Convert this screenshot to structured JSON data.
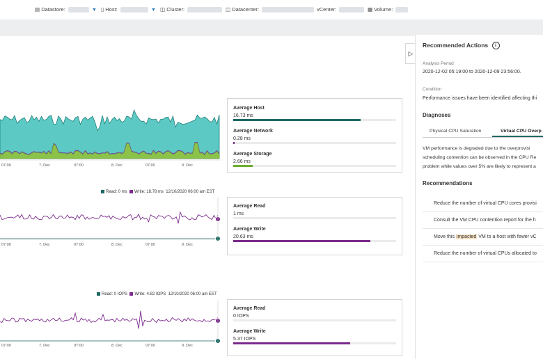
{
  "breadcrumb": {
    "datastore": "Datastore:",
    "host": "Host:",
    "cluster": "Cluster:",
    "datacenter": "Datacenter:",
    "vcenter": "vCenter:",
    "volume": "Volume:"
  },
  "latency_card": {
    "avg_host_label": "Average Host",
    "avg_host_value": "16.73 ms",
    "avg_host_fraction": 0.78,
    "avg_network_label": "Average Network",
    "avg_network_value": "0.28 ms",
    "avg_network_fraction": 0.01,
    "avg_storage_label": "Average Storage",
    "avg_storage_value": "2.66 ms",
    "avg_storage_fraction": 0.12
  },
  "chart1_ticks": [
    "07:00",
    "7. Dec",
    "07:00",
    "8. Dec",
    "07:00",
    "9. Dec"
  ],
  "chart2": {
    "legend_read": "Read: 0 ms",
    "legend_write": "Write: 18.78 ms",
    "legend_time": "12/10/2020 06:00 am EST",
    "ticks": [
      "07:00",
      "7. Dec",
      "07:00",
      "8. Dec",
      "07:00",
      "9. Dec"
    ]
  },
  "read_write_card": {
    "avg_read_label": "Average Read",
    "avg_read_value": "1 ms",
    "avg_read_fraction": 0.0,
    "avg_write_label": "Average Write",
    "avg_write_value": "20.63 ms",
    "avg_write_fraction": 0.84
  },
  "chart3": {
    "legend_read": "Read: 0 IOPS",
    "legend_write": "Write: 4.82 IOPS",
    "legend_time": "12/10/2020 06:00 am EST",
    "ticks": [
      "07:00",
      "7. Dec",
      "07:00",
      "8. Dec",
      "07:00",
      "9. Dec"
    ]
  },
  "iops_card": {
    "avg_read_label": "Average Read",
    "avg_read_value": "0 IOPS",
    "avg_read_fraction": 0.0,
    "avg_write_label": "Average Write",
    "avg_write_value": "5.37 IOPS",
    "avg_write_fraction": 0.72
  },
  "right_panel": {
    "title": "Recommended Actions",
    "analysis_period_label": "Analysis Period",
    "analysis_period_value": "2020-12-02 05:19:00 to 2020-12-09 23:56:00.",
    "condition_label": "Condition",
    "condition_value": "Performance issues have been identified affecting thi",
    "diagnoses_label": "Diagnoses",
    "tab_physical": "Physical CPU Saturation",
    "tab_virtual": "Virtual CPU Overp",
    "diagnosis_lines": [
      "VM performance is degraded due to the overprovisi",
      "scheduling contention can be observed in the CPU Re",
      "problem while values over 5% are likely to represent a"
    ],
    "recommendations_label": "Recommendations",
    "rec1": "Reduce the number of virtual CPU cores provisi",
    "rec2": "Consult the VM CPU contention report for the h",
    "rec3_pre": "Move this ",
    "rec3_hl": "impacted",
    "rec3_post": " VM to a host with fewer vC",
    "rec4": "Reduce the number of virtual CPUs allocated to"
  },
  "colors": {
    "teal_area": "#5dc9c4",
    "teal_line": "#1f7f78",
    "green_area": "#8bc34a",
    "purple": "#7b2a8c",
    "dark_teal": "#1d6a63"
  }
}
